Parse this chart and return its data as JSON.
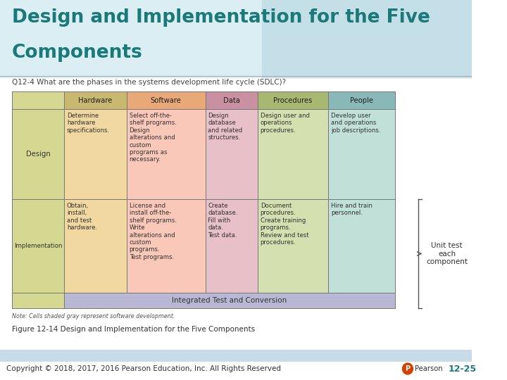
{
  "title_line1": "Design and Implementation for the Five",
  "title_line2": "Components",
  "subtitle": "Q12-4 What are the phases in the systems development life cycle (SDLC)?",
  "title_color": "#1a7a7a",
  "header_labels": [
    "Hardware",
    "Software",
    "Data",
    "Procedures",
    "People"
  ],
  "header_colors": [
    "#c8b870",
    "#e8a878",
    "#c890a0",
    "#a8b870",
    "#88b8b8"
  ],
  "row_label_color": "#d4d890",
  "design_col_colors": [
    "#f0d8a0",
    "#f9c8b8",
    "#e8c0c8",
    "#d4e0b0",
    "#c0e0d8"
  ],
  "impl_col_colors": [
    "#f0d8a0",
    "#f9c8b8",
    "#e8c0c8",
    "#d4e0b0",
    "#c0e0d8"
  ],
  "design_row": [
    "Determine\nhardware\nspecifications.",
    "Select off-the-\nshelf programs.\nDesign\nalterations and\ncustom\nprograms as\nnecessary.",
    "Design\ndatabase\nand related\nstructures.",
    "Design user and\noperations\nprocedures.",
    "Develop user\nand operations\njob descriptions."
  ],
  "impl_row": [
    "Obtain,\ninstall,\nand test\nhardware.",
    "License and\ninstall off-the-\nshelf programs.\nWrite\nalterations and\ncustom\nprograms.\nTest programs.",
    "Create\ndatabase.\nFill with\ndata.\nTest data.",
    "Document\nprocedures.\nCreate training\nprograms.\nReview and test\nprocedures.",
    "Hire and train\npersonnel."
  ],
  "integrated_text": "Integrated Test and Conversion",
  "integrated_color": "#b8b8d4",
  "note_text": "Note: Cells shaded gray represent software development.",
  "figure_text": "Figure 12-14 Design and Implementation for the Five Components",
  "footer_text": "Copyright © 2018, 2017, 2016 Pearson Education, Inc. All Rights Reserved",
  "footer_page": "12-25",
  "footer_bg": "#c8dce8",
  "unit_test_text": "Unit test\neach\ncomponent",
  "bg_color": "#ffffff"
}
